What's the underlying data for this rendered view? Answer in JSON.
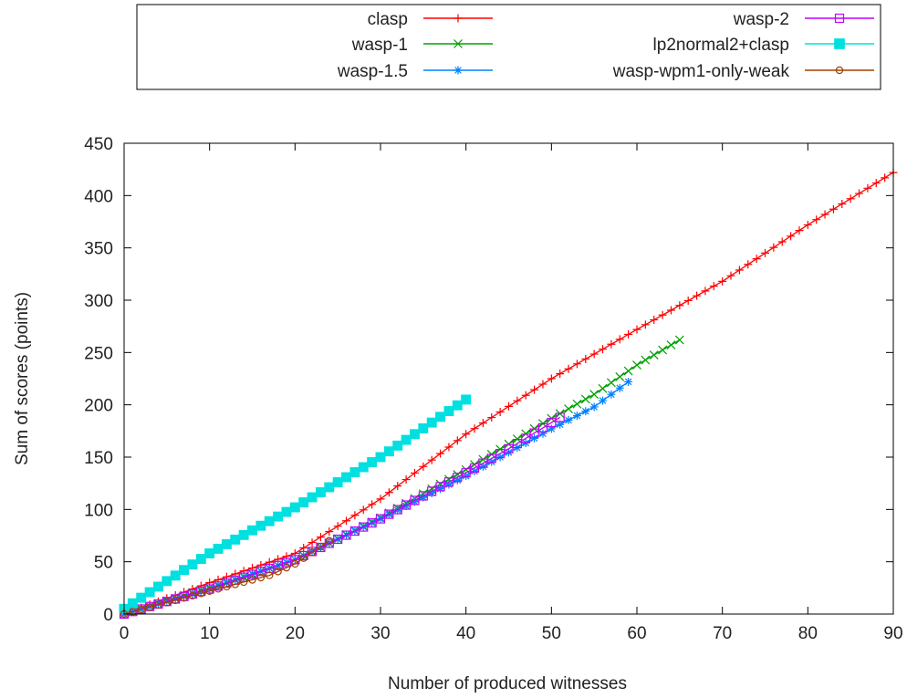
{
  "chart_data": {
    "type": "line",
    "title": "",
    "xlabel": "Number of produced witnesses",
    "ylabel": "Sum of scores (points)",
    "xlim": [
      0,
      90
    ],
    "ylim": [
      0,
      450
    ],
    "xticks": [
      0,
      10,
      20,
      30,
      40,
      50,
      60,
      70,
      80,
      90
    ],
    "yticks": [
      0,
      50,
      100,
      150,
      200,
      250,
      300,
      350,
      400,
      450
    ],
    "grid": false,
    "legend_position": "top",
    "series": [
      {
        "name": "clasp",
        "color": "#ff0000",
        "marker": "plus",
        "n": 91,
        "anchors": [
          [
            0,
            0
          ],
          [
            10,
            30
          ],
          [
            20,
            58
          ],
          [
            30,
            110
          ],
          [
            40,
            172
          ],
          [
            50,
            225
          ],
          [
            60,
            272
          ],
          [
            70,
            318
          ],
          [
            80,
            372
          ],
          [
            90,
            422
          ]
        ]
      },
      {
        "name": "wasp-1",
        "color": "#00a000",
        "marker": "x",
        "n": 66,
        "anchors": [
          [
            0,
            0
          ],
          [
            10,
            25
          ],
          [
            20,
            52
          ],
          [
            30,
            92
          ],
          [
            40,
            138
          ],
          [
            50,
            187
          ],
          [
            55,
            210
          ],
          [
            60,
            238
          ],
          [
            65,
            262
          ]
        ]
      },
      {
        "name": "wasp-1.5",
        "color": "#0080ff",
        "marker": "star",
        "n": 60,
        "anchors": [
          [
            0,
            0
          ],
          [
            10,
            24
          ],
          [
            20,
            52
          ],
          [
            30,
            91
          ],
          [
            40,
            132
          ],
          [
            50,
            177
          ],
          [
            55,
            198
          ],
          [
            59,
            222
          ]
        ]
      },
      {
        "name": "wasp-2",
        "color": "#c000ff",
        "marker": "square-open",
        "n": 52,
        "anchors": [
          [
            0,
            0
          ],
          [
            10,
            24
          ],
          [
            20,
            52
          ],
          [
            30,
            91
          ],
          [
            40,
            135
          ],
          [
            45,
            158
          ],
          [
            51,
            188
          ]
        ]
      },
      {
        "name": "lp2normal2+clasp",
        "color": "#00e0e0",
        "marker": "square-filled",
        "n": 41,
        "anchors": [
          [
            0,
            5
          ],
          [
            10,
            58
          ],
          [
            20,
            102
          ],
          [
            30,
            150
          ],
          [
            40,
            205
          ]
        ]
      },
      {
        "name": "wasp-wpm1-only-weak",
        "color": "#a04000",
        "marker": "circle-open",
        "n": 25,
        "anchors": [
          [
            0,
            0
          ],
          [
            10,
            22
          ],
          [
            17,
            37
          ],
          [
            20,
            48
          ],
          [
            24,
            70
          ]
        ]
      }
    ]
  }
}
